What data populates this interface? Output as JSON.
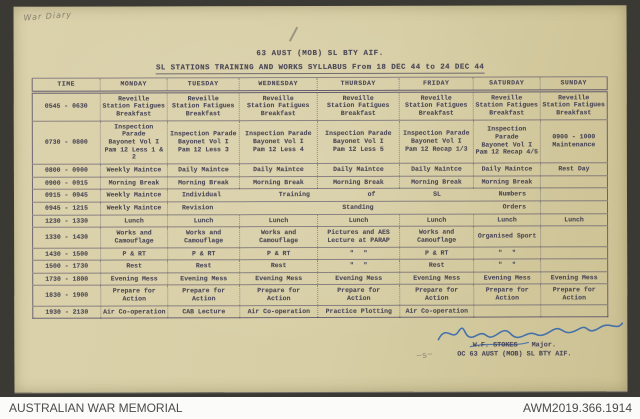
{
  "scan": {
    "pencil_note": "War Diary",
    "title": "63 AUST (MOB) SL BTY AIF.",
    "subtitle": "SL STATIONS TRAINING AND WORKS SYLLABUS  From 18 DEC 44 to 24 DEC 44"
  },
  "table": {
    "columns": [
      "TIME",
      "MONDAY",
      "TUESDAY",
      "WEDNESDAY",
      "THURSDAY",
      "FRIDAY",
      "SATURDAY",
      "SUNDAY"
    ],
    "rows": [
      {
        "time": "0545 - 0630",
        "cells": [
          "Reveille\nStation Fatigues\nBreakfast",
          "Reveille\nStation Fatigues\nBreakfast",
          "Reveille\nStation Fatigues\nBreakfast",
          "Reveille\nStation Fatigues\nBreakfast",
          "Reveille\nStation Fatigues\nBreakfast",
          "Reveille\nStation Fatigues\nBreakfast",
          "Reveille\nStation Fatigues\nBreakfast"
        ]
      },
      {
        "time": "0730 - 0800",
        "cells": [
          "Inspection Parade\nBayonet Vol I\nPam 12 Less 1 & 2",
          "Inspection Parade\nBayonet Vol I\nPam 12 Less 3",
          "Inspection Parade\nBayonet Vol I\nPam 12 Less 4",
          "Inspection Parade\nBayonet Vol I\nPam 12 Less 5",
          "Inspection Parade\nBayonet Vol I\nPam 12 Recap 1/3",
          "Inspection Parade\nBayonet Vol I\nPam 12 Recap 4/5",
          "0900 - 1000\nMaintenance"
        ]
      },
      {
        "time": "0800 - 0900",
        "cells": [
          "Weekly Maintce",
          "Daily Maintce",
          "Daily Maintce",
          "Daily Maintce",
          "Daily Maintce",
          "Daily Maintce",
          "Rest Day"
        ]
      },
      {
        "time": "0900 - 0915",
        "cells": [
          "Morning Break",
          "Morning Break",
          "Morning Break",
          "Morning Break",
          "Morning Break",
          "Morning Break",
          ""
        ]
      },
      {
        "time": "0915 - 0945",
        "cells": [
          "Weekly Maintce",
          {
            "text": "Individual Training of SL Numbers",
            "span": 5
          },
          ""
        ]
      },
      {
        "time": "0945 - 1215",
        "cells": [
          "Weekly Maintce",
          {
            "text": "Revision Standing Orders",
            "span": 5
          },
          ""
        ]
      },
      {
        "time": "1230 - 1330",
        "cells": [
          "Lunch",
          "Lunch",
          "Lunch",
          "Lunch",
          "Lunch",
          "Lunch",
          "Lunch"
        ]
      },
      {
        "time": "1330 - 1430",
        "cells": [
          "Works and\nCamouflage",
          "Works and\nCamouflage",
          "Works and\nCamouflage",
          "Pictures and AES\nLecture at PARAP",
          "Works and\nCamouflage",
          "Organised Sport",
          ""
        ]
      },
      {
        "time": "1430 - 1500",
        "cells": [
          "P & RT",
          "P & RT",
          "P & RT",
          "\"   \"",
          "P & RT",
          "\"   \"",
          ""
        ]
      },
      {
        "time": "1500 - 1730",
        "cells": [
          "Rest",
          "Rest",
          "Rest",
          "\"   \"",
          "Rest",
          "\"   \"",
          ""
        ]
      },
      {
        "time": "1730 - 1800",
        "cells": [
          "Evening Mess",
          "Evening Mess",
          "Evening Mess",
          "Evening Mess",
          "Evening Mess",
          "Evening Mess",
          "Evening Mess"
        ]
      },
      {
        "time": "1830 - 1900",
        "cells": [
          "Prepare for\nAction",
          "Prepare for\nAction",
          "Prepare for\nAction",
          "Prepare for\nAction",
          "Prepare for\nAction",
          "Prepare for\nAction",
          "Prepare for\nAction"
        ]
      },
      {
        "time": "1930 - 2130",
        "cells": [
          "Air Co-operation",
          "CAB Lecture",
          "Air Co-operation",
          "Practice Plotting",
          "Air Co-operation",
          "",
          ""
        ]
      }
    ]
  },
  "signature": {
    "name": "W.F. STOKES",
    "rank": "Major.",
    "unit_line": "OC 63 AUST (MOB) SL BTY AIF."
  },
  "footer": {
    "left": "AUSTRALIAN WAR MEMORIAL",
    "right": "AWM2019.366.1914"
  },
  "colors": {
    "background": "#3a3933",
    "paper": "#d7cea5",
    "typewriter_ink": "#4e4a58",
    "pencil": "#857f6e",
    "signature_ink": "#2d63ab",
    "caption_bar": "#fbfbf9"
  }
}
